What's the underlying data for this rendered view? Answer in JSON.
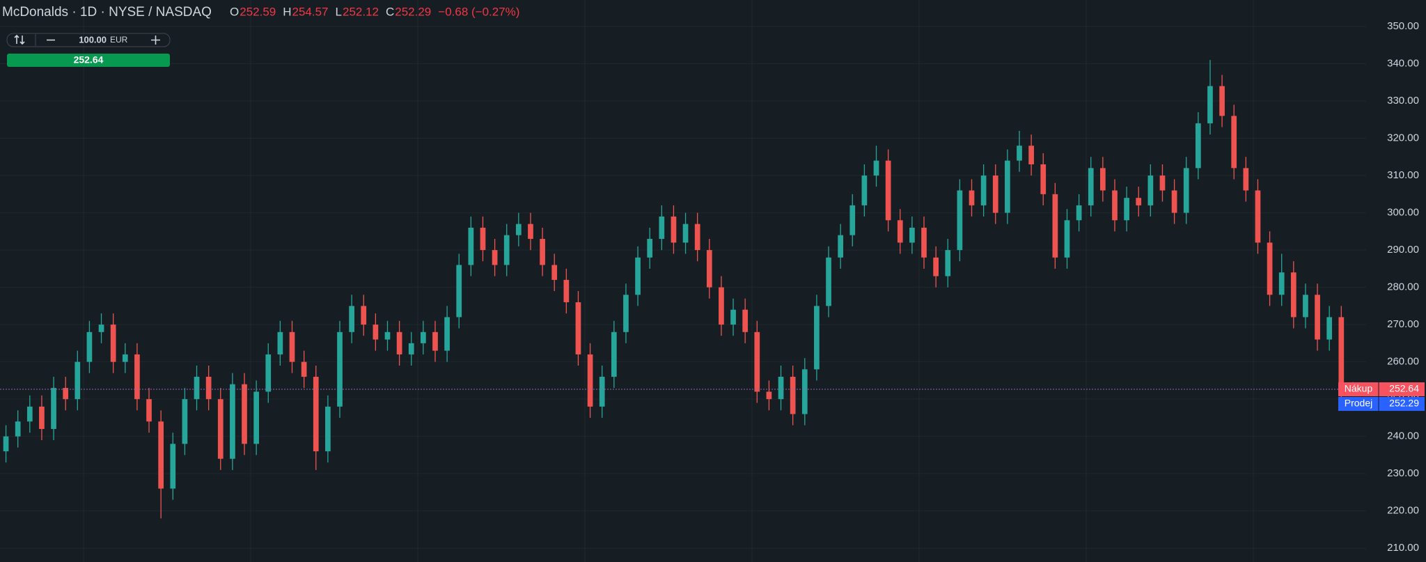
{
  "chart_data": {
    "type": "candlestick",
    "title": "McDonalds · 1D · NYSE / NASDAQ",
    "ohlc_labels": [
      "O",
      "H",
      "L",
      "C"
    ],
    "change_label": "−0.68 (−0.27%)",
    "up_color": "#26a69a",
    "down_color": "#ef5350",
    "grid": true,
    "ylim": [
      206.3,
      357.1
    ],
    "yticks": [
      {
        "value": 210,
        "label": "210.00"
      },
      {
        "value": 220,
        "label": "220.00"
      },
      {
        "value": 230,
        "label": "230.00"
      },
      {
        "value": 240,
        "label": "240.00"
      },
      {
        "value": 250,
        "label": "250.00"
      },
      {
        "value": 260,
        "label": "260.00"
      },
      {
        "value": 270,
        "label": "270.00"
      },
      {
        "value": 280,
        "label": "280.00"
      },
      {
        "value": 290,
        "label": "290.00"
      },
      {
        "value": 300,
        "label": "300.00"
      },
      {
        "value": 310,
        "label": "310.00"
      },
      {
        "value": 320,
        "label": "320.00"
      },
      {
        "value": 330,
        "label": "330.00"
      },
      {
        "value": 340,
        "label": "340.00"
      },
      {
        "value": 350,
        "label": "350.00"
      }
    ],
    "buy_price": {
      "label": "Nákup",
      "value": 252.64,
      "color": "#f7525f"
    },
    "sell_price": {
      "label": "Prodej",
      "value": 252.29,
      "color": "#2962ff"
    },
    "trade_widget": {
      "quantity": "100.00",
      "currency": "EUR",
      "button_color": "#089950"
    },
    "open": [
      236,
      240,
      244,
      248,
      242,
      253,
      250,
      260,
      268,
      270,
      260,
      262,
      250,
      244,
      226,
      238,
      250,
      256,
      250,
      234,
      254,
      238,
      252,
      262,
      268,
      260,
      256,
      236,
      248,
      268,
      275,
      270,
      266,
      268,
      262,
      265,
      268,
      263,
      272,
      286,
      296,
      290,
      286,
      294,
      297,
      293,
      286,
      282,
      276,
      262,
      248,
      256,
      268,
      278,
      288,
      293,
      299,
      292,
      297,
      290,
      280,
      270,
      274,
      268,
      252,
      250,
      256,
      246,
      258,
      275,
      288,
      294,
      302,
      310,
      314,
      298,
      292,
      296,
      288,
      283,
      290,
      306,
      302,
      310,
      300,
      314,
      318,
      313,
      305,
      288,
      298,
      302,
      312,
      306,
      298,
      304,
      302,
      310,
      306,
      300,
      312,
      324,
      334,
      326,
      312,
      306,
      292,
      278,
      284,
      272,
      278,
      266,
      272,
      252.59
    ],
    "high": [
      243,
      247,
      251,
      251,
      256,
      256,
      263,
      271,
      273,
      273,
      265,
      265,
      253,
      247,
      241,
      253,
      259,
      259,
      253,
      257,
      257,
      255,
      265,
      271,
      271,
      263,
      259,
      251,
      271,
      278,
      278,
      273,
      271,
      271,
      268,
      271,
      271,
      275,
      289,
      299,
      299,
      293,
      297,
      300,
      300,
      296,
      289,
      285,
      279,
      265,
      259,
      271,
      281,
      291,
      296,
      302,
      302,
      300,
      300,
      293,
      283,
      277,
      277,
      271,
      255,
      259,
      259,
      261,
      278,
      291,
      297,
      305,
      313,
      318,
      317,
      301,
      299,
      299,
      291,
      293,
      309,
      309,
      313,
      313,
      317,
      322,
      321,
      316,
      308,
      301,
      305,
      315,
      315,
      309,
      307,
      307,
      313,
      313,
      309,
      315,
      327,
      341,
      337,
      329,
      315,
      309,
      295,
      289,
      287,
      281,
      281,
      275,
      275,
      254.57
    ],
    "low": [
      233,
      237,
      241,
      239,
      239,
      247,
      247,
      257,
      265,
      257,
      257,
      247,
      241,
      218,
      223,
      235,
      247,
      247,
      231,
      231,
      235,
      235,
      249,
      259,
      257,
      253,
      231,
      233,
      245,
      265,
      267,
      263,
      263,
      259,
      259,
      262,
      260,
      260,
      269,
      283,
      287,
      283,
      283,
      291,
      290,
      283,
      279,
      273,
      259,
      245,
      245,
      253,
      265,
      275,
      285,
      290,
      289,
      289,
      287,
      277,
      267,
      267,
      265,
      249,
      247,
      247,
      243,
      243,
      255,
      272,
      285,
      291,
      299,
      307,
      295,
      289,
      289,
      285,
      280,
      280,
      287,
      299,
      299,
      297,
      297,
      311,
      310,
      302,
      285,
      285,
      295,
      299,
      303,
      295,
      295,
      299,
      299,
      303,
      297,
      297,
      309,
      321,
      323,
      309,
      303,
      289,
      275,
      275,
      269,
      269,
      263,
      263,
      250,
      252.12
    ],
    "close": [
      240,
      244,
      248,
      242,
      253,
      250,
      260,
      268,
      270,
      260,
      262,
      250,
      244,
      226,
      238,
      250,
      256,
      250,
      234,
      254,
      238,
      252,
      262,
      268,
      260,
      256,
      236,
      248,
      268,
      275,
      270,
      266,
      268,
      262,
      265,
      268,
      263,
      272,
      286,
      296,
      290,
      286,
      294,
      297,
      293,
      286,
      282,
      276,
      262,
      248,
      256,
      268,
      278,
      288,
      293,
      299,
      292,
      297,
      290,
      280,
      270,
      274,
      268,
      252,
      250,
      256,
      246,
      258,
      275,
      288,
      294,
      302,
      310,
      314,
      298,
      292,
      296,
      288,
      283,
      290,
      306,
      302,
      310,
      300,
      314,
      318,
      313,
      305,
      288,
      298,
      302,
      312,
      306,
      298,
      304,
      302,
      310,
      306,
      300,
      312,
      324,
      334,
      326,
      312,
      306,
      292,
      278,
      284,
      272,
      278,
      266,
      272,
      252.97,
      252.29
    ]
  }
}
